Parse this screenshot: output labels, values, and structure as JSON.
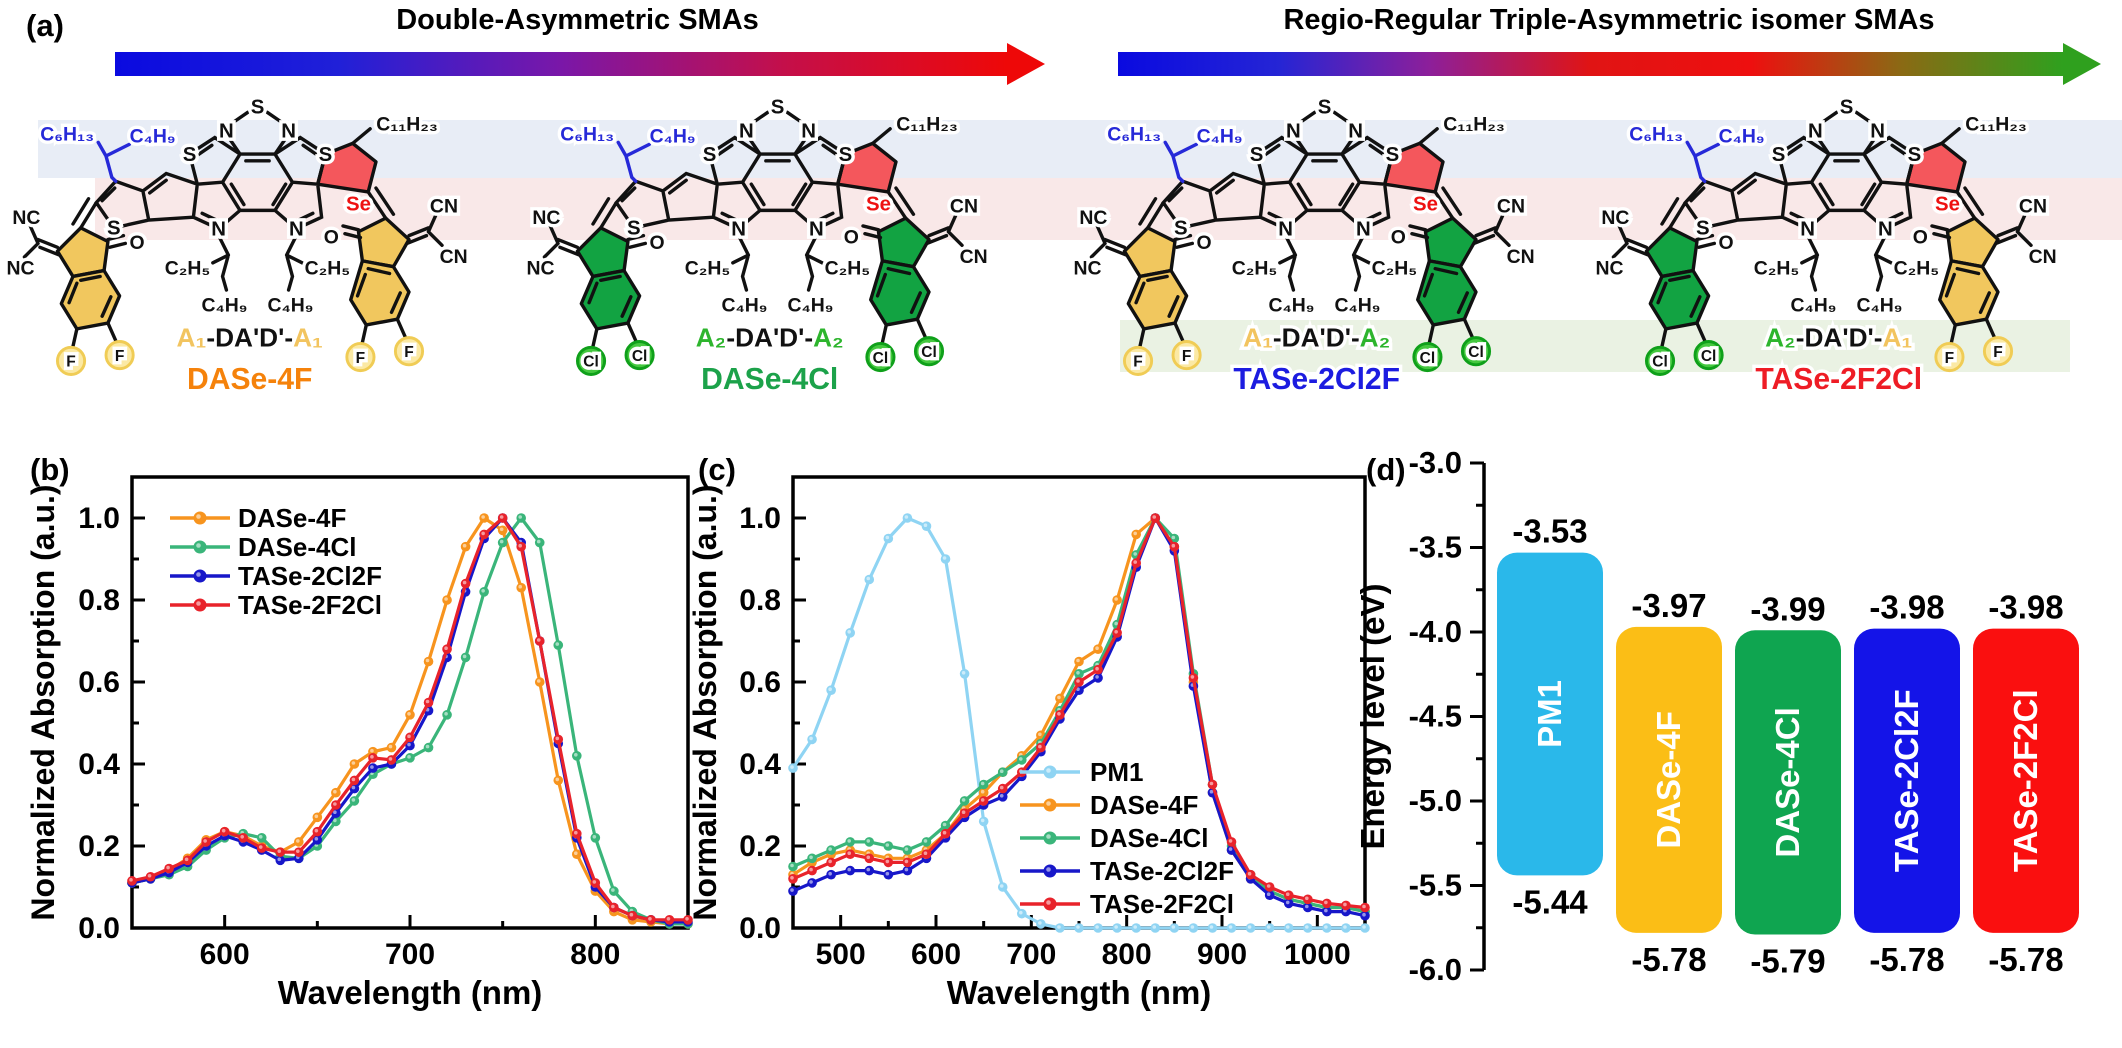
{
  "figure": {
    "panel_labels": {
      "a": "(a)",
      "b": "(b)",
      "c": "(c)",
      "d": "(d)"
    },
    "background": "#ffffff"
  },
  "panel_a": {
    "left_header": "Double-Asymmetric SMAs",
    "right_header": "Regio-Regular Triple-Asymmetric isomer SMAs",
    "left_arrow_stops": [
      "#0a0ae0",
      "#2020d8",
      "#7a17a8",
      "#c40f4a",
      "#ee0808"
    ],
    "right_arrow_stops": [
      "#0a0ae0",
      "#2525d5",
      "#8d1f9a",
      "#e01414",
      "#ee0f0f",
      "#8a6a14",
      "#2fa01e"
    ],
    "highlight_bands": {
      "blue": "#E8EDF6",
      "pink": "#F9E8E8",
      "green": "#EAF2E3"
    },
    "atom_labels": {
      "s": "S",
      "n": "N",
      "se": "Se",
      "o": "O",
      "nc": "NC",
      "cn": "CN",
      "hexyl": "C₆H₁₃",
      "butyl": "C₄H₉",
      "undecyl": "C₁₁H₂₃",
      "ethyl": "C₂H₅"
    },
    "halogen_styles": {
      "F": {
        "fill": "#FBE9A4",
        "ring": "#F0CC55"
      },
      "Cl": {
        "fill": "#45C83F",
        "ring": "#0FA01A"
      }
    },
    "end_group_fills": {
      "A1": "#F1C75E",
      "A2": "#12A342"
    },
    "selenophene_fill": "#F4575C",
    "se_text_color": "#EE1111",
    "alkyl_chain_color": "#2629D8",
    "molecules": [
      {
        "name": "DASe-4F",
        "name_color": "#F5820B",
        "formula": [
          {
            "text": "A₁",
            "color": "#F2C45F"
          },
          {
            "text": "-DA'D'-",
            "color": "#111111"
          },
          {
            "text": "A₁",
            "color": "#F2C45F"
          }
        ],
        "left_end": {
          "type": "A1",
          "halogen": "F"
        },
        "right_end": {
          "type": "A1",
          "halogen": "F"
        },
        "green_band": false
      },
      {
        "name": "DASe-4Cl",
        "name_color": "#1CA24A",
        "formula": [
          {
            "text": "A₂",
            "color": "#2DB52D"
          },
          {
            "text": "-DA'D'-",
            "color": "#111111"
          },
          {
            "text": "A₂",
            "color": "#2DB52D"
          }
        ],
        "left_end": {
          "type": "A2",
          "halogen": "Cl"
        },
        "right_end": {
          "type": "A2",
          "halogen": "Cl"
        },
        "green_band": false
      },
      {
        "name": "TASe-2Cl2F",
        "name_color": "#1C1CE0",
        "formula": [
          {
            "text": "A₁",
            "color": "#F2C45F"
          },
          {
            "text": "-DA'D'-",
            "color": "#111111"
          },
          {
            "text": "A₂",
            "color": "#2DB52D"
          }
        ],
        "left_end": {
          "type": "A1",
          "halogen": "F"
        },
        "right_end": {
          "type": "A2",
          "halogen": "Cl"
        },
        "green_band": true
      },
      {
        "name": "TASe-2F2Cl",
        "name_color": "#EE1C25",
        "formula": [
          {
            "text": "A₂",
            "color": "#2DB52D"
          },
          {
            "text": "-DA'D'-",
            "color": "#111111"
          },
          {
            "text": "A₁",
            "color": "#F2C45F"
          }
        ],
        "left_end": {
          "type": "A2",
          "halogen": "Cl"
        },
        "right_end": {
          "type": "A1",
          "halogen": "F"
        },
        "green_band": true
      }
    ]
  },
  "chart_data": [
    {
      "type": "line",
      "panel": "b",
      "title": "",
      "xlabel": "Wavelength (nm)",
      "ylabel": "Normalized Absorption (a.u.)",
      "xlim": [
        550,
        850
      ],
      "ylim": [
        0,
        1.1
      ],
      "xticks": [
        600,
        700,
        800
      ],
      "yticks": [
        0.0,
        0.2,
        0.4,
        0.6,
        0.8,
        1.0
      ],
      "grid": false,
      "legend_position": "upper-left",
      "x": [
        550,
        560,
        570,
        580,
        590,
        600,
        610,
        620,
        630,
        640,
        650,
        660,
        670,
        680,
        690,
        700,
        710,
        720,
        730,
        740,
        750,
        760,
        770,
        780,
        790,
        800,
        810,
        820,
        830,
        840,
        850
      ],
      "series": [
        {
          "name": "DASe-4F",
          "color": "#F7941E",
          "values": [
            0.11,
            0.12,
            0.14,
            0.17,
            0.215,
            0.235,
            0.225,
            0.2,
            0.185,
            0.21,
            0.27,
            0.33,
            0.4,
            0.43,
            0.44,
            0.52,
            0.65,
            0.8,
            0.93,
            1.0,
            0.97,
            0.83,
            0.6,
            0.36,
            0.18,
            0.09,
            0.04,
            0.02,
            0.015,
            0.01,
            0.01
          ]
        },
        {
          "name": "DASe-4Cl",
          "color": "#3AB57A",
          "values": [
            0.11,
            0.12,
            0.13,
            0.15,
            0.19,
            0.22,
            0.23,
            0.22,
            0.175,
            0.17,
            0.2,
            0.26,
            0.31,
            0.375,
            0.4,
            0.415,
            0.44,
            0.52,
            0.66,
            0.82,
            0.94,
            1.0,
            0.94,
            0.69,
            0.42,
            0.22,
            0.09,
            0.04,
            0.02,
            0.01,
            0.01
          ]
        },
        {
          "name": "TASe-2Cl2F",
          "color": "#1717C9",
          "values": [
            0.11,
            0.12,
            0.135,
            0.16,
            0.2,
            0.225,
            0.21,
            0.19,
            0.165,
            0.17,
            0.215,
            0.28,
            0.34,
            0.39,
            0.4,
            0.445,
            0.53,
            0.66,
            0.82,
            0.95,
            1.0,
            0.94,
            0.7,
            0.45,
            0.22,
            0.1,
            0.05,
            0.03,
            0.02,
            0.015,
            0.015
          ]
        },
        {
          "name": "TASe-2F2Cl",
          "color": "#E8232B",
          "values": [
            0.115,
            0.125,
            0.145,
            0.165,
            0.21,
            0.235,
            0.22,
            0.195,
            0.185,
            0.185,
            0.235,
            0.3,
            0.36,
            0.415,
            0.41,
            0.465,
            0.55,
            0.68,
            0.84,
            0.96,
            1.0,
            0.93,
            0.7,
            0.46,
            0.23,
            0.11,
            0.05,
            0.03,
            0.02,
            0.02,
            0.02
          ]
        }
      ]
    },
    {
      "type": "line",
      "panel": "c",
      "title": "",
      "xlabel": "Wavelength (nm)",
      "ylabel": "Normalized Absorption (a.u.)",
      "xlim": [
        450,
        1050
      ],
      "ylim": [
        0,
        1.1
      ],
      "xticks": [
        500,
        600,
        700,
        800,
        900,
        1000
      ],
      "yticks": [
        0.0,
        0.2,
        0.4,
        0.6,
        0.8,
        1.0
      ],
      "grid": false,
      "legend_position": "center-right",
      "x": [
        450,
        470,
        490,
        510,
        530,
        550,
        570,
        590,
        610,
        630,
        650,
        670,
        690,
        710,
        730,
        750,
        770,
        790,
        810,
        830,
        850,
        870,
        890,
        910,
        930,
        950,
        970,
        990,
        1010,
        1030,
        1050
      ],
      "series": [
        {
          "name": "PM1",
          "color": "#8FD4F3",
          "values": [
            0.39,
            0.46,
            0.58,
            0.72,
            0.85,
            0.95,
            1.0,
            0.98,
            0.9,
            0.62,
            0.26,
            0.1,
            0.035,
            0.01,
            0,
            0,
            0,
            0,
            0,
            0,
            0,
            0,
            0,
            0,
            0,
            0,
            0,
            0,
            0,
            0,
            0
          ]
        },
        {
          "name": "DASe-4F",
          "color": "#F7941E",
          "values": [
            0.13,
            0.16,
            0.18,
            0.19,
            0.18,
            0.17,
            0.17,
            0.19,
            0.23,
            0.29,
            0.33,
            0.38,
            0.42,
            0.47,
            0.56,
            0.65,
            0.68,
            0.8,
            0.96,
            1.0,
            0.93,
            0.6,
            0.33,
            0.19,
            0.12,
            0.09,
            0.07,
            0.06,
            0.05,
            0.05,
            0.04
          ]
        },
        {
          "name": "DASe-4Cl",
          "color": "#3AB57A",
          "values": [
            0.15,
            0.17,
            0.19,
            0.21,
            0.21,
            0.2,
            0.19,
            0.21,
            0.25,
            0.31,
            0.35,
            0.38,
            0.41,
            0.45,
            0.53,
            0.62,
            0.64,
            0.74,
            0.91,
            1.0,
            0.95,
            0.62,
            0.35,
            0.2,
            0.13,
            0.09,
            0.07,
            0.06,
            0.05,
            0.05,
            0.04
          ]
        },
        {
          "name": "TASe-2Cl2F",
          "color": "#1717C9",
          "values": [
            0.09,
            0.11,
            0.13,
            0.14,
            0.14,
            0.13,
            0.14,
            0.17,
            0.22,
            0.27,
            0.3,
            0.32,
            0.37,
            0.43,
            0.51,
            0.58,
            0.61,
            0.71,
            0.88,
            1.0,
            0.92,
            0.59,
            0.33,
            0.19,
            0.12,
            0.08,
            0.06,
            0.05,
            0.04,
            0.04,
            0.03
          ]
        },
        {
          "name": "TASe-2F2Cl",
          "color": "#E8232B",
          "values": [
            0.12,
            0.14,
            0.16,
            0.18,
            0.17,
            0.16,
            0.16,
            0.18,
            0.23,
            0.28,
            0.31,
            0.34,
            0.38,
            0.44,
            0.52,
            0.6,
            0.63,
            0.72,
            0.89,
            1.0,
            0.93,
            0.61,
            0.35,
            0.21,
            0.13,
            0.1,
            0.08,
            0.07,
            0.06,
            0.055,
            0.05
          ]
        }
      ]
    },
    {
      "type": "bar-range",
      "panel": "d",
      "title": "",
      "ylabel": "Energy level (eV)",
      "ylim": [
        -6.0,
        -3.0
      ],
      "yticks": [
        -3.0,
        -3.5,
        -4.0,
        -4.5,
        -5.0,
        -5.5,
        -6.0
      ],
      "categories": [
        "PM1",
        "DASe-4F",
        "DASe-4Cl",
        "TASe-2Cl2F",
        "TASe-2F2Cl"
      ],
      "colors": [
        "#2AB8EA",
        "#FBBE16",
        "#0FA550",
        "#1414E8",
        "#FA0F0F"
      ],
      "lumo": [
        -3.53,
        -3.97,
        -3.99,
        -3.98,
        -3.98
      ],
      "homo": [
        -5.44,
        -5.78,
        -5.79,
        -5.78,
        -5.78
      ],
      "bar_text_color": "#ffffff"
    }
  ]
}
